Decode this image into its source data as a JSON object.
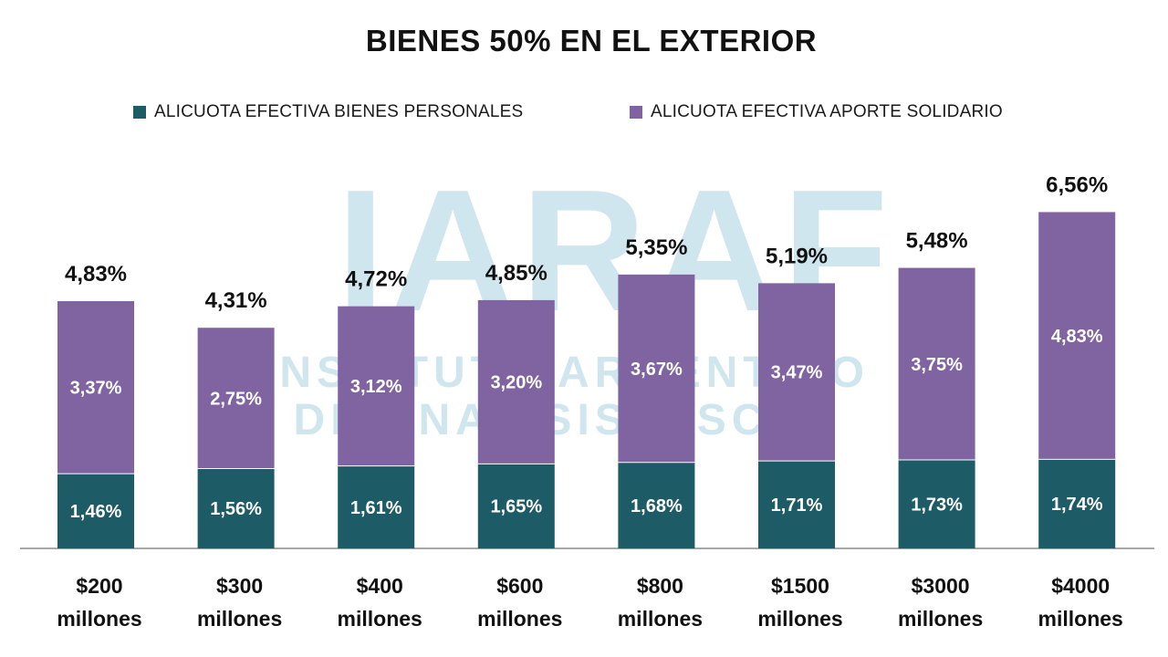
{
  "chart_data": {
    "type": "bar",
    "stacked": true,
    "title": "BIENES 50% EN EL EXTERIOR",
    "categories": [
      [
        "$200",
        "millones"
      ],
      [
        "$300",
        "millones"
      ],
      [
        "$400",
        "millones"
      ],
      [
        "$600",
        "millones"
      ],
      [
        "$800",
        "millones"
      ],
      [
        "$1500",
        "millones"
      ],
      [
        "$3000",
        "millones"
      ],
      [
        "$4000",
        "millones"
      ]
    ],
    "series": [
      {
        "name": "ALICUOTA EFECTIVA BIENES PERSONALES",
        "color": "#1d5b66",
        "values": [
          1.46,
          1.56,
          1.61,
          1.65,
          1.68,
          1.71,
          1.73,
          1.74
        ],
        "labels": [
          "1,46%",
          "1,56%",
          "1,61%",
          "1,65%",
          "1,68%",
          "1,71%",
          "1,73%",
          "1,74%"
        ]
      },
      {
        "name": "ALICUOTA EFECTIVA APORTE SOLIDARIO",
        "color": "#8064a2",
        "values": [
          3.37,
          2.75,
          3.12,
          3.2,
          3.67,
          3.47,
          3.75,
          4.83
        ],
        "labels": [
          "3,37%",
          "2,75%",
          "3,12%",
          "3,20%",
          "3,67%",
          "3,47%",
          "3,75%",
          "4,83%"
        ]
      }
    ],
    "totals": [
      4.83,
      4.31,
      4.72,
      4.85,
      5.35,
      5.19,
      5.48,
      6.56
    ],
    "total_labels": [
      "4,83%",
      "4,31%",
      "4,72%",
      "4,85%",
      "5,35%",
      "5,19%",
      "5,48%",
      "6,56%"
    ],
    "ylim": [
      0,
      7
    ],
    "y_axis_visible": false,
    "grid": false,
    "legend_position": "top",
    "watermark": {
      "logo": "IARAF",
      "lines": [
        "INSTITUTO ARGENTINO",
        "DE ANALISIS FISCAL"
      ],
      "color": "#cfe6ef"
    }
  }
}
